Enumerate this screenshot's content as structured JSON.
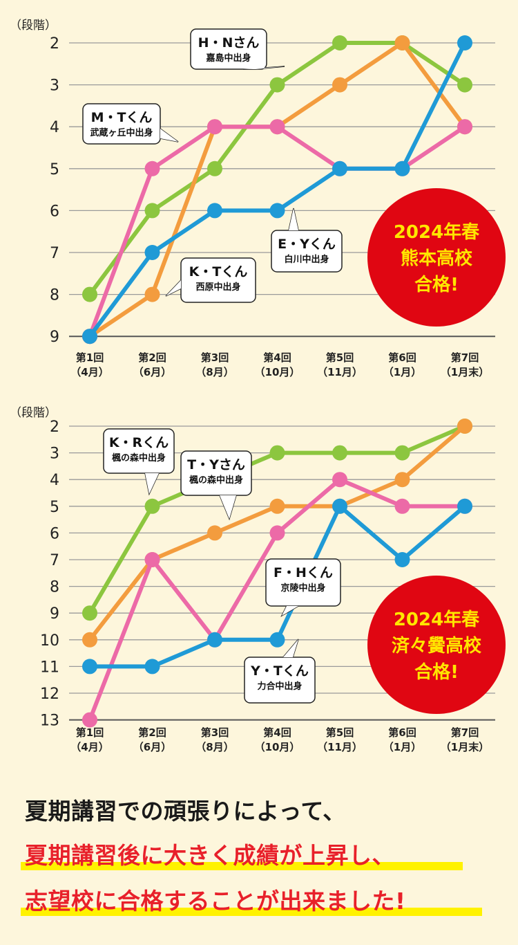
{
  "colors": {
    "green": "#8cc63f",
    "orange": "#f39c3e",
    "pink": "#ec6aa7",
    "blue": "#1f9ad6",
    "badge": "#e00612",
    "badge_text": "#ffe600",
    "grid": "#9a9a9a",
    "background": "#fdf6dc",
    "footer_red": "#e8202a"
  },
  "chart_data": [
    {
      "type": "line",
      "y_unit_label": "（段階）",
      "y_reversed": true,
      "ylim": [
        2,
        9
      ],
      "y_ticks": [
        "2",
        "3",
        "4",
        "5",
        "6",
        "7",
        "8",
        "9"
      ],
      "x_labels": [
        [
          "第1回",
          "（4月）"
        ],
        [
          "第2回",
          "（6月）"
        ],
        [
          "第3回",
          "（8月）"
        ],
        [
          "第4回",
          "（10月）"
        ],
        [
          "第5回",
          "（11月）"
        ],
        [
          "第6回",
          "（1月）"
        ],
        [
          "第7回",
          "（1月末）"
        ]
      ],
      "series": [
        {
          "color_key": "green",
          "values": [
            8,
            6,
            5,
            3,
            2,
            2,
            3
          ]
        },
        {
          "color_key": "orange",
          "values": [
            9,
            8,
            4,
            4,
            3,
            2,
            4
          ]
        },
        {
          "color_key": "pink",
          "values": [
            9,
            5,
            4,
            4,
            5,
            5,
            4
          ]
        },
        {
          "color_key": "blue",
          "values": [
            9,
            7,
            6,
            6,
            5,
            5,
            2
          ]
        }
      ],
      "callouts": [
        {
          "name": "H・Nさん",
          "school": "嘉島中出身"
        },
        {
          "name": "M・Tくん",
          "school": "武蔵ヶ丘中出身"
        },
        {
          "name": "E・Yくん",
          "school": "白川中出身"
        },
        {
          "name": "K・Tくん",
          "school": "西原中出身"
        }
      ],
      "badge": [
        "2024年春",
        "熊本高校",
        "合格!"
      ]
    },
    {
      "type": "line",
      "y_unit_label": "（段階）",
      "y_reversed": true,
      "ylim": [
        2,
        13
      ],
      "y_ticks": [
        "2",
        "3",
        "4",
        "5",
        "6",
        "7",
        "8",
        "9",
        "10",
        "11",
        "12",
        "13"
      ],
      "x_labels": [
        [
          "第1回",
          "（4月）"
        ],
        [
          "第2回",
          "（6月）"
        ],
        [
          "第3回",
          "（8月）"
        ],
        [
          "第4回",
          "（10月）"
        ],
        [
          "第5回",
          "（11月）"
        ],
        [
          "第6回",
          "（1月）"
        ],
        [
          "第7回",
          "（1月末）"
        ]
      ],
      "series": [
        {
          "color_key": "green",
          "values": [
            9,
            5,
            4,
            3,
            3,
            3,
            2
          ]
        },
        {
          "color_key": "orange",
          "values": [
            10,
            7,
            6,
            5,
            5,
            4,
            2
          ]
        },
        {
          "color_key": "pink",
          "values": [
            13,
            7,
            10,
            6,
            4,
            5,
            5
          ]
        },
        {
          "color_key": "blue",
          "values": [
            11,
            11,
            10,
            10,
            5,
            7,
            5
          ]
        }
      ],
      "callouts": [
        {
          "name": "K・Rくん",
          "school": "楓の森中出身"
        },
        {
          "name": "T・Yさん",
          "school": "楓の森中出身"
        },
        {
          "name": "F・Hくん",
          "school": "京陵中出身"
        },
        {
          "name": "Y・Tくん",
          "school": "力合中出身"
        }
      ],
      "badge": [
        "2024年春",
        "済々黌高校",
        "合格!"
      ]
    }
  ],
  "footer": {
    "line1": "夏期講習での頑張りによって、",
    "line2": "夏期講習後に大きく成績が上昇し、",
    "line3": "志望校に合格することが出来ました!"
  }
}
